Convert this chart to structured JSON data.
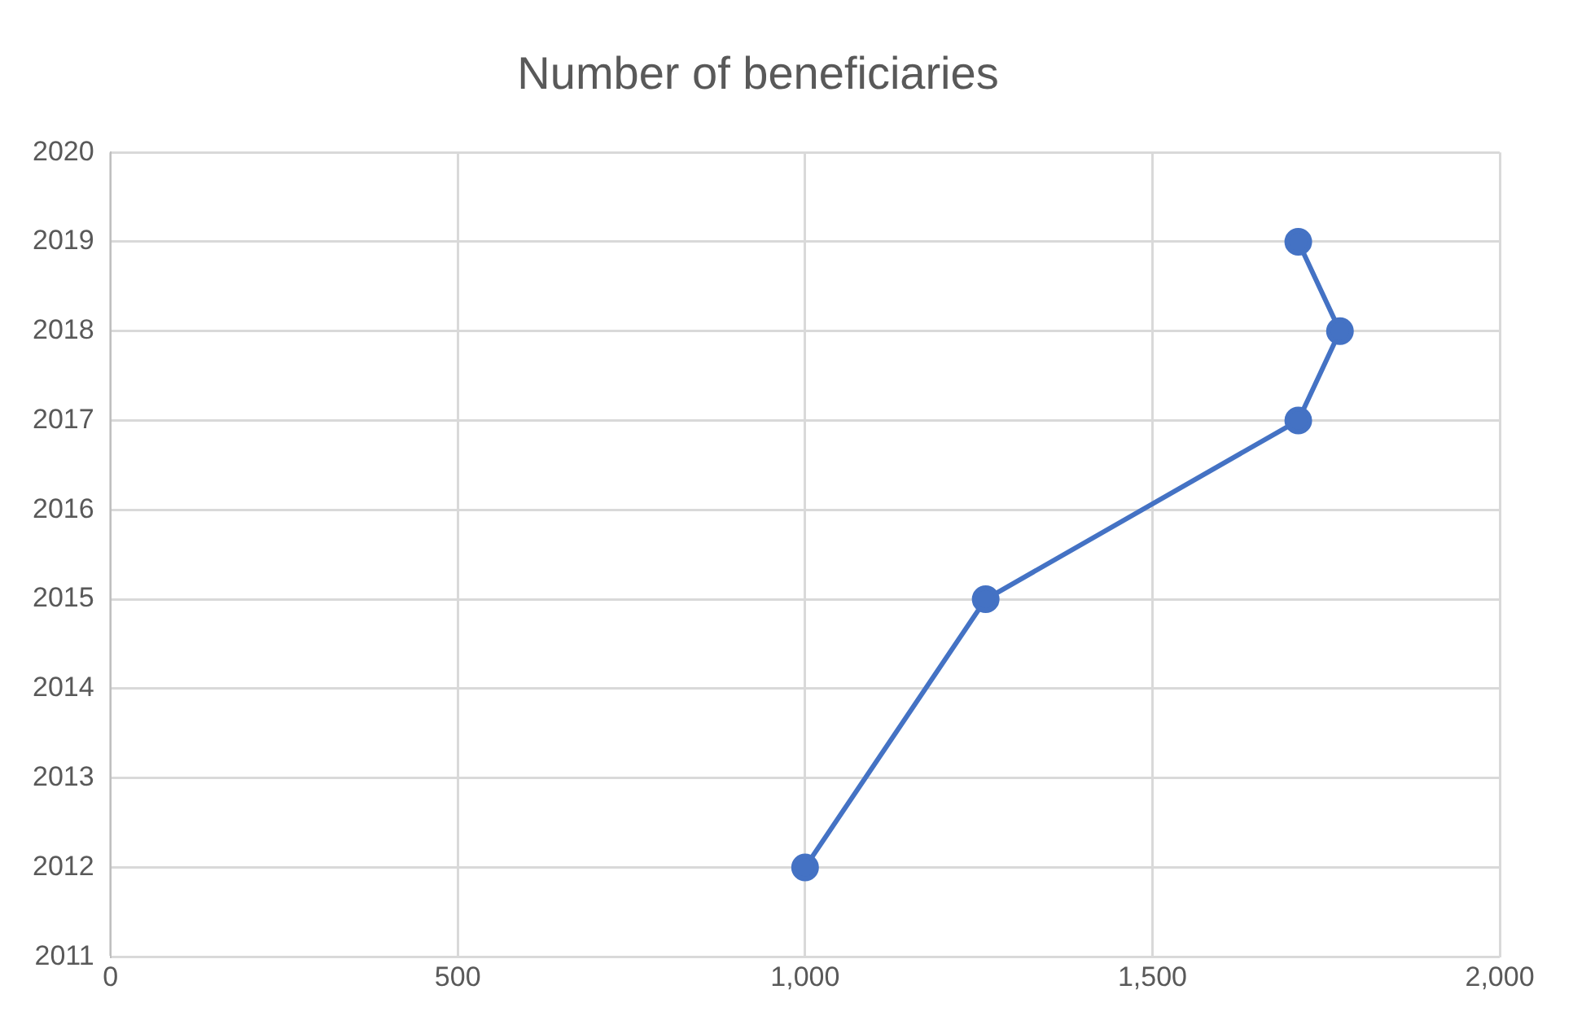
{
  "chart_data": {
    "type": "line",
    "title": "Number of beneficiaries",
    "x": [
      1000,
      1260,
      1710,
      1770,
      1710
    ],
    "series": [
      {
        "color": "#4472c4",
        "values": [
          2012,
          2015,
          2017,
          2018,
          2019
        ]
      }
    ],
    "xlim": [
      0,
      2000
    ],
    "xticks": [
      {
        "value": 0,
        "label": "0"
      },
      {
        "value": 500,
        "label": "500"
      },
      {
        "value": 1000,
        "label": "1,000"
      },
      {
        "value": 1500,
        "label": "1,500"
      },
      {
        "value": 2000,
        "label": "2,000"
      }
    ],
    "ylim": [
      2011,
      2020
    ],
    "yticks": [
      2011,
      2012,
      2013,
      2014,
      2015,
      2016,
      2017,
      2018,
      2019,
      2020
    ],
    "grid": true,
    "legend": false,
    "marker": "circle",
    "line_style": "solid"
  }
}
